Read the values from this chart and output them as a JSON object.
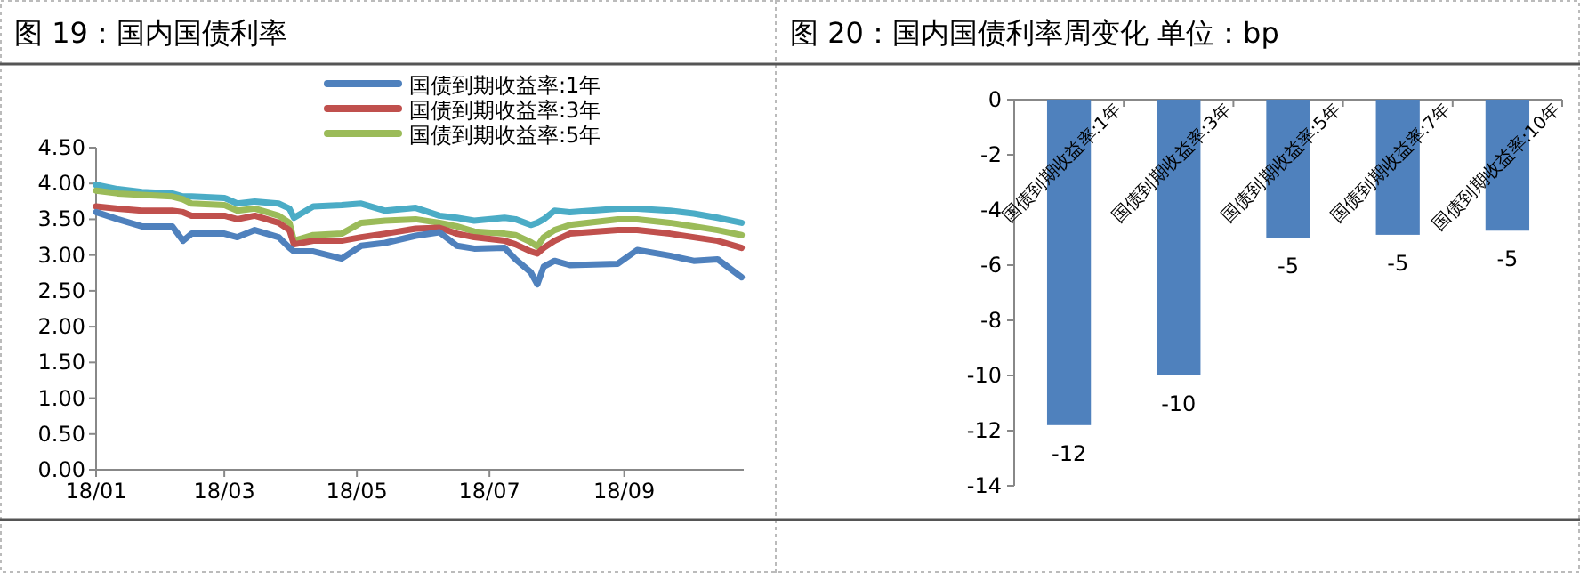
{
  "chart_data": [
    {
      "type": "line",
      "title": "图 19：国内国债利率",
      "legend": "top",
      "grid": false,
      "marker": "none",
      "line_style": "solid",
      "x": [
        "--01-01",
        "--01-11",
        "--01-22",
        "--02-05",
        "--02-10",
        "--02-14",
        "--03-01",
        "--03-07",
        "--03-15",
        "--03-26",
        "--03-31",
        "--04-02",
        "--04-11",
        "--04-24",
        "--05-03",
        "--05-14",
        "--05-28",
        "--06-08",
        "--06-16",
        "--06-24",
        "--07-08",
        "--07-13",
        "--07-20",
        "--07-23",
        "--07-26",
        "--07-31",
        "--08-07",
        "--08-29",
        "--09-07",
        "--09-22",
        "--10-03",
        "--10-14",
        "--10-25"
      ],
      "xlim": [
        "--01-01",
        "--10-26"
      ],
      "xticks": [
        {
          "value": "--01-01",
          "label": "18/01"
        },
        {
          "value": "--03-01",
          "label": "18/03"
        },
        {
          "value": "--05-01",
          "label": "18/05"
        },
        {
          "value": "--07-01",
          "label": "18/07"
        },
        {
          "value": "--09-01",
          "label": "18/09"
        }
      ],
      "ylim": [
        0,
        4.5
      ],
      "yticks": [
        {
          "value": 0,
          "label": "0.00"
        },
        {
          "value": 0.5,
          "label": "0.50"
        },
        {
          "value": 1,
          "label": "1.00"
        },
        {
          "value": 1.5,
          "label": "1.50"
        },
        {
          "value": 2,
          "label": "2.00"
        },
        {
          "value": 2.5,
          "label": "2.50"
        },
        {
          "value": 3,
          "label": "3.00"
        },
        {
          "value": 3.5,
          "label": "3.50"
        },
        {
          "value": 4,
          "label": "4.00"
        },
        {
          "value": 4.5,
          "label": "4.50"
        }
      ],
      "series": [
        {
          "color": "#4bacc6",
          "values": [
            3.98,
            3.92,
            3.88,
            3.86,
            3.82,
            3.82,
            3.8,
            3.72,
            3.75,
            3.72,
            3.65,
            3.52,
            3.68,
            3.7,
            3.72,
            3.62,
            3.66,
            3.55,
            3.52,
            3.48,
            3.52,
            3.5,
            3.42,
            3.45,
            3.5,
            3.62,
            3.6,
            3.65,
            3.65,
            3.62,
            3.58,
            3.52,
            3.45
          ]
        },
        {
          "name": "国债到期收益率:5年",
          "color": "#9bbb59",
          "values": [
            3.9,
            3.86,
            3.84,
            3.82,
            3.78,
            3.72,
            3.7,
            3.62,
            3.65,
            3.55,
            3.45,
            3.2,
            3.28,
            3.3,
            3.45,
            3.48,
            3.5,
            3.45,
            3.4,
            3.33,
            3.3,
            3.28,
            3.18,
            3.12,
            3.25,
            3.35,
            3.42,
            3.5,
            3.5,
            3.45,
            3.4,
            3.35,
            3.28
          ]
        },
        {
          "name": "国债到期收益率:3年",
          "color": "#c0504d",
          "values": [
            3.68,
            3.65,
            3.62,
            3.62,
            3.6,
            3.55,
            3.55,
            3.5,
            3.55,
            3.45,
            3.35,
            3.15,
            3.2,
            3.2,
            3.25,
            3.3,
            3.37,
            3.38,
            3.3,
            3.25,
            3.2,
            3.15,
            3.05,
            3.02,
            3.1,
            3.2,
            3.3,
            3.35,
            3.35,
            3.3,
            3.25,
            3.2,
            3.1
          ]
        },
        {
          "name": "国债到期收益率:1年",
          "color": "#4f81bd",
          "values": [
            3.6,
            3.5,
            3.4,
            3.4,
            3.2,
            3.3,
            3.3,
            3.25,
            3.35,
            3.25,
            3.1,
            3.05,
            3.05,
            2.95,
            3.13,
            3.17,
            3.27,
            3.32,
            3.13,
            3.09,
            3.1,
            2.94,
            2.76,
            2.59,
            2.84,
            2.92,
            2.86,
            2.88,
            3.07,
            2.99,
            2.92,
            2.94,
            2.69
          ]
        }
      ]
    },
    {
      "type": "bar",
      "title": "图 20：国内国债利率周变化      单位：bp",
      "grid": false,
      "categories": [
        "国债到期收益率:1年",
        "国债到期收益率:3年",
        "国债到期收益率:5年",
        "国债到期收益率:7年",
        "国债到期收益率:10年"
      ],
      "values": [
        -11.8,
        -10,
        -5,
        -4.9,
        -4.75
      ],
      "value_labels": [
        "-12",
        "-10",
        "-5",
        "-5",
        "-5"
      ],
      "color": "#4f81bd",
      "ylim": [
        -14,
        0
      ],
      "yticks": [
        -14,
        -12,
        -10,
        -8,
        -6,
        -4,
        -2,
        0
      ]
    }
  ]
}
